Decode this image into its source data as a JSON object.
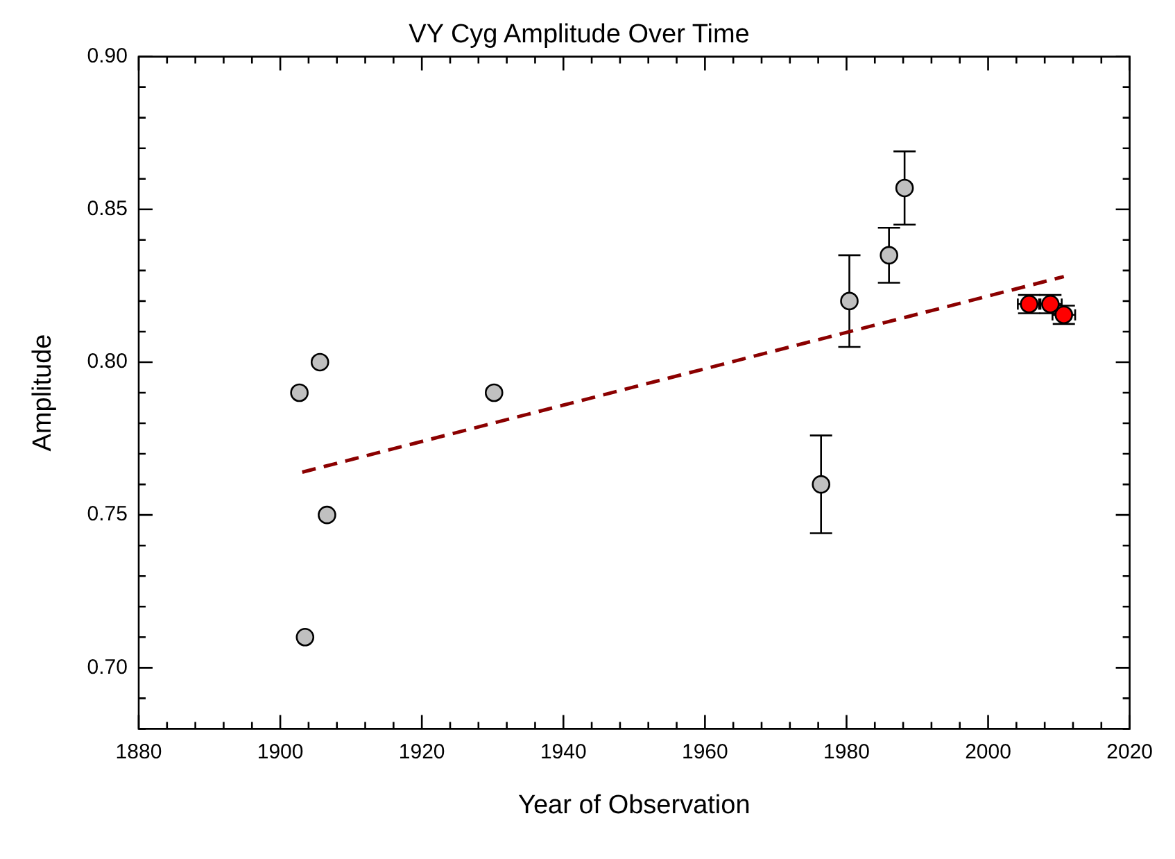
{
  "chart_data": {
    "type": "scatter",
    "title": "VY Cyg Amplitude Over Time",
    "xlabel": "Year of Observation",
    "ylabel": "Amplitude",
    "xlim": [
      1880,
      2020
    ],
    "xticks": [
      1880,
      {
        "value": 1884,
        "label": null
      },
      {
        "value": 1888,
        "label": null
      },
      {
        "value": 1892,
        "label": null
      },
      {
        "value": 1896,
        "label": null
      },
      1900,
      {
        "value": 1904,
        "label": null
      },
      {
        "value": 1908,
        "label": null
      },
      {
        "value": 1912,
        "label": null
      },
      {
        "value": 1916,
        "label": null
      },
      1920,
      {
        "value": 1924,
        "label": null
      },
      {
        "value": 1928,
        "label": null
      },
      {
        "value": 1932,
        "label": null
      },
      {
        "value": 1936,
        "label": null
      },
      1940,
      {
        "value": 1944,
        "label": null
      },
      {
        "value": 1948,
        "label": null
      },
      {
        "value": 1952,
        "label": null
      },
      {
        "value": 1956,
        "label": null
      },
      1960,
      {
        "value": 1964,
        "label": null
      },
      {
        "value": 1968,
        "label": null
      },
      {
        "value": 1972,
        "label": null
      },
      {
        "value": 1976,
        "label": null
      },
      1980,
      {
        "value": 1984,
        "label": null
      },
      {
        "value": 1988,
        "label": null
      },
      {
        "value": 1992,
        "label": null
      },
      {
        "value": 1996,
        "label": null
      },
      2000,
      {
        "value": 2004,
        "label": null
      },
      {
        "value": 2008,
        "label": null
      },
      {
        "value": 2012,
        "label": null
      },
      {
        "value": 2016,
        "label": null
      },
      2020
    ],
    "ylim": [
      0.68,
      0.9
    ],
    "yticks": [
      {
        "value": 0.68,
        "label": null
      },
      {
        "value": 0.69,
        "label": null
      },
      {
        "value": 0.7,
        "label": "0.70"
      },
      {
        "value": 0.71,
        "label": null
      },
      {
        "value": 0.72,
        "label": null
      },
      {
        "value": 0.73,
        "label": null
      },
      {
        "value": 0.74,
        "label": null
      },
      {
        "value": 0.75,
        "label": "0.75"
      },
      {
        "value": 0.76,
        "label": null
      },
      {
        "value": 0.77,
        "label": null
      },
      {
        "value": 0.78,
        "label": null
      },
      {
        "value": 0.79,
        "label": null
      },
      {
        "value": 0.8,
        "label": "0.80"
      },
      {
        "value": 0.81,
        "label": null
      },
      {
        "value": 0.82,
        "label": null
      },
      {
        "value": 0.83,
        "label": null
      },
      {
        "value": 0.84,
        "label": null
      },
      {
        "value": 0.85,
        "label": "0.85"
      },
      {
        "value": 0.86,
        "label": null
      },
      {
        "value": 0.87,
        "label": null
      },
      {
        "value": 0.88,
        "label": null
      },
      {
        "value": 0.89,
        "label": null
      },
      {
        "value": 0.9,
        "label": "0.90"
      }
    ],
    "grid": false,
    "legend": false,
    "marker": "circle",
    "series": [
      {
        "color": "#c0c0c0",
        "x": [
          1902.7,
          1903.5,
          1905.6,
          1906.6,
          1930.2,
          1976.4,
          1980.4,
          1986.0,
          1988.2
        ],
        "values": [
          0.79,
          0.71,
          0.8,
          0.75,
          0.79,
          0.76,
          0.82,
          0.835,
          0.857
        ],
        "errors": [
          null,
          null,
          null,
          null,
          null,
          0.016,
          0.015,
          0.009,
          0.012
        ]
      },
      {
        "color": "#ff0000",
        "x": [
          2005.8,
          2008.8,
          2010.7
        ],
        "values": [
          0.819,
          0.819,
          0.8155
        ],
        "errors": [
          0.003,
          0.003,
          0.003
        ],
        "xerrors": [
          1.6,
          1.6,
          1.6
        ]
      },
      {
        "type": "line",
        "color": "#8b0000",
        "line_style": "dashed",
        "marker": "none",
        "x": [
          1903.1,
          2010.7
        ],
        "values": [
          0.764,
          0.828
        ]
      }
    ]
  }
}
